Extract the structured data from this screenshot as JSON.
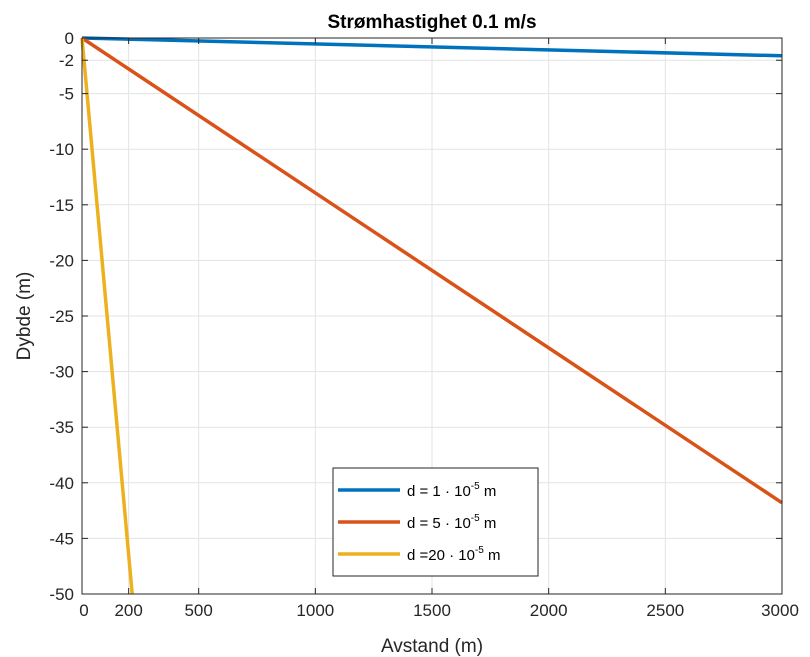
{
  "chart_data": {
    "type": "line",
    "title": "Strømhastighet 0.1 m/s",
    "xlabel": "Avstand (m)",
    "ylabel": "Dybde (m)",
    "xlim": [
      0,
      3000
    ],
    "ylim": [
      -50,
      0
    ],
    "xticks": [
      0,
      200,
      500,
      1000,
      1500,
      2000,
      2500,
      3000
    ],
    "yticks": [
      0,
      -2,
      -5,
      -10,
      -15,
      -20,
      -25,
      -30,
      -35,
      -40,
      -45,
      -50
    ],
    "grid": true,
    "legend_position": "bottom-center",
    "series": [
      {
        "name": "d =  1 · 10-5 m",
        "legend": {
          "prefix": "d =  1 · 10",
          "exp": "-5",
          "suffix": " m"
        },
        "color": "#0072BD",
        "x": [
          0,
          3000
        ],
        "y": [
          0,
          -1.6
        ]
      },
      {
        "name": "d =  5 · 10-5 m",
        "legend": {
          "prefix": "d =  5 · 10",
          "exp": "-5",
          "suffix": " m"
        },
        "color": "#D95319",
        "x": [
          0,
          3000
        ],
        "y": [
          0,
          -41.8
        ]
      },
      {
        "name": "d =20 · 10-5 m",
        "legend": {
          "prefix": "d =20 · 10",
          "exp": "-5",
          "suffix": " m"
        },
        "color": "#EDB120",
        "x": [
          0,
          215
        ],
        "y": [
          0,
          -50
        ]
      }
    ]
  }
}
